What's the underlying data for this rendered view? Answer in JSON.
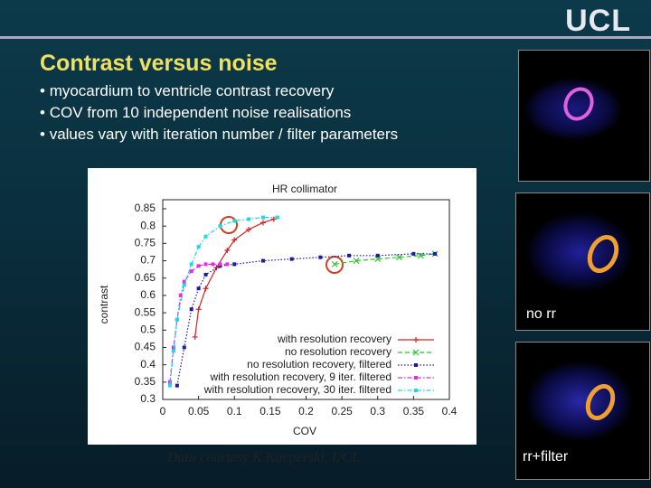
{
  "header": {
    "logo": "UCL",
    "title": "Contrast versus noise",
    "bullets": [
      "myocardium to ventricle contrast recovery",
      "COV from 10 independent noise realisations",
      "values vary with iteration number / filter parameters"
    ]
  },
  "chart_data": {
    "type": "line",
    "title": "HR collimator",
    "xlabel": "COV",
    "ylabel": "contrast",
    "xlim": [
      0,
      0.4
    ],
    "ylim": [
      0.3,
      0.85
    ],
    "xticks": [
      0,
      0.05,
      0.1,
      0.15,
      0.2,
      0.25,
      0.3,
      0.35,
      0.4
    ],
    "yticks": [
      0.3,
      0.35,
      0.4,
      0.45,
      0.5,
      0.55,
      0.6,
      0.65,
      0.7,
      0.75,
      0.8,
      0.85
    ],
    "legend": "lower right",
    "series": [
      {
        "name": "with resolution recovery",
        "color": "#d62020",
        "marker": "plus",
        "dash": "solid",
        "x": [
          0.045,
          0.05,
          0.06,
          0.075,
          0.09,
          0.1,
          0.12,
          0.14,
          0.155
        ],
        "values": [
          0.48,
          0.56,
          0.62,
          0.68,
          0.73,
          0.76,
          0.79,
          0.81,
          0.82
        ]
      },
      {
        "name": "no resolution recovery",
        "color": "#30c030",
        "marker": "cross",
        "dash": "dash",
        "x": [
          0.24,
          0.27,
          0.3,
          0.33,
          0.36,
          0.38
        ],
        "values": [
          0.69,
          0.7,
          0.705,
          0.71,
          0.715,
          0.72
        ]
      },
      {
        "name": "no resolution recovery, filtered",
        "color": "#1a1aa0",
        "marker": "square",
        "dash": "dot",
        "x": [
          0.02,
          0.03,
          0.04,
          0.05,
          0.06,
          0.08,
          0.1,
          0.14,
          0.18,
          0.22,
          0.26,
          0.3,
          0.35,
          0.38
        ],
        "values": [
          0.34,
          0.45,
          0.56,
          0.62,
          0.66,
          0.685,
          0.69,
          0.7,
          0.705,
          0.71,
          0.715,
          0.715,
          0.72,
          0.72
        ]
      },
      {
        "name": "with resolution recovery, 9 iter. filtered",
        "color": "#e030e0",
        "marker": "square",
        "dash": "dashdot",
        "x": [
          0.01,
          0.015,
          0.02,
          0.025,
          0.03,
          0.04,
          0.05,
          0.06,
          0.07,
          0.08,
          0.09
        ],
        "values": [
          0.35,
          0.45,
          0.53,
          0.6,
          0.64,
          0.67,
          0.685,
          0.69,
          0.69,
          0.69,
          0.69
        ]
      },
      {
        "name": "with resolution recovery, 30 iter. filtered",
        "color": "#20d8e0",
        "marker": "square",
        "dash": "dashdot",
        "x": [
          0.01,
          0.015,
          0.02,
          0.03,
          0.04,
          0.05,
          0.06,
          0.08,
          0.1,
          0.12,
          0.14,
          0.16
        ],
        "values": [
          0.34,
          0.44,
          0.53,
          0.63,
          0.69,
          0.74,
          0.77,
          0.8,
          0.815,
          0.82,
          0.825,
          0.825
        ]
      }
    ]
  },
  "credit": "Data courtesy K Kacperski, UCL",
  "images": [
    {
      "caption": "no rr"
    },
    {
      "caption": "rr+filter"
    }
  ]
}
